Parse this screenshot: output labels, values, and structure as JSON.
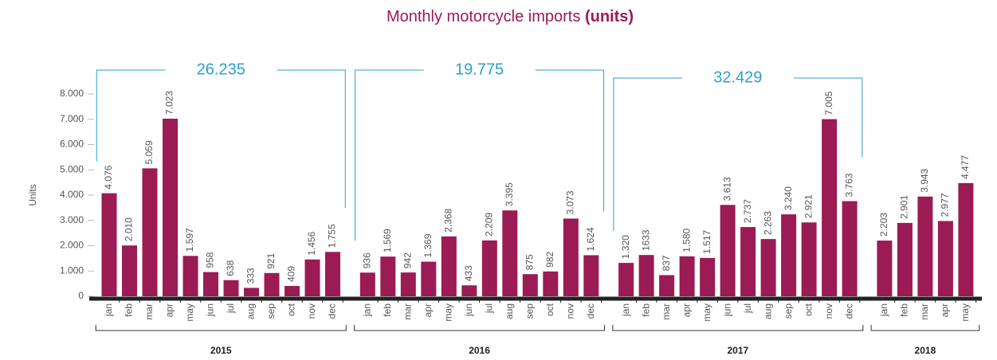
{
  "chart_data": {
    "type": "bar",
    "title": "Monthly motorcycle imports",
    "title_bold": "(units)",
    "y_label": "Units",
    "color": "#9b1b55",
    "ylim": [
      0,
      8000
    ],
    "yticks": [
      0,
      {
        "value": 1000,
        "label": "1.000"
      },
      {
        "value": 2000,
        "label": "2.000"
      },
      {
        "value": 3000,
        "label": "3.000"
      },
      {
        "value": 4000,
        "label": "4.000"
      },
      {
        "value": 5000,
        "label": "5.000"
      },
      {
        "value": 6000,
        "label": "6.000"
      },
      {
        "value": 7000,
        "label": "7.000"
      },
      {
        "value": 8000,
        "label": "8.000"
      }
    ],
    "groups": [
      {
        "name": "2015",
        "total": "26.235",
        "categories": [
          "jan",
          "feb",
          "mar",
          "apr",
          "may",
          "jun",
          "jul",
          "aug",
          "sep",
          "oct",
          "nov",
          "dec"
        ],
        "values": [
          4076,
          2010,
          5059,
          7023,
          1597,
          958,
          638,
          333,
          921,
          409,
          1456,
          1755
        ],
        "value_labels": [
          "4.076",
          "2.010",
          "5.059",
          "7.023",
          "1.597",
          "958",
          "638",
          "333",
          "921",
          "409",
          "1.456",
          "1.755"
        ]
      },
      {
        "name": "2016",
        "total": "19.775",
        "categories": [
          "jan",
          "feb",
          "mar",
          "apr",
          "may",
          "jun",
          "jul",
          "aug",
          "sep",
          "oct",
          "nov",
          "dec"
        ],
        "values": [
          936,
          1569,
          942,
          1369,
          2368,
          433,
          2209,
          3395,
          875,
          982,
          3073,
          1624
        ],
        "value_labels": [
          "936",
          "1.569",
          "942",
          "1.369",
          "2.368",
          "433",
          "2.209",
          "3.395",
          "875",
          "982",
          "3.073",
          "1.624"
        ]
      },
      {
        "name": "2017",
        "total": "32.429",
        "categories": [
          "jan",
          "feb",
          "mar",
          "apr",
          "may",
          "jun",
          "jul",
          "aug",
          "sep",
          "oct",
          "nov",
          "dec"
        ],
        "values": [
          1320,
          1633,
          837,
          1580,
          1517,
          3613,
          2737,
          2263,
          3240,
          2921,
          7005,
          3763
        ],
        "value_labels": [
          "1.320",
          "1633",
          "837",
          "1.580",
          "1.517",
          "3.613",
          "2.737",
          "2.263",
          "3.240",
          "2.921",
          "7.005",
          "3.763"
        ]
      },
      {
        "name": "2018",
        "categories": [
          "jan",
          "feb",
          "mar",
          "apr",
          "may"
        ],
        "values": [
          2203,
          2901,
          3943,
          2977,
          4477
        ],
        "value_labels": [
          "2.203",
          "2.901",
          "3.943",
          "2.977",
          "4.477"
        ]
      }
    ]
  }
}
